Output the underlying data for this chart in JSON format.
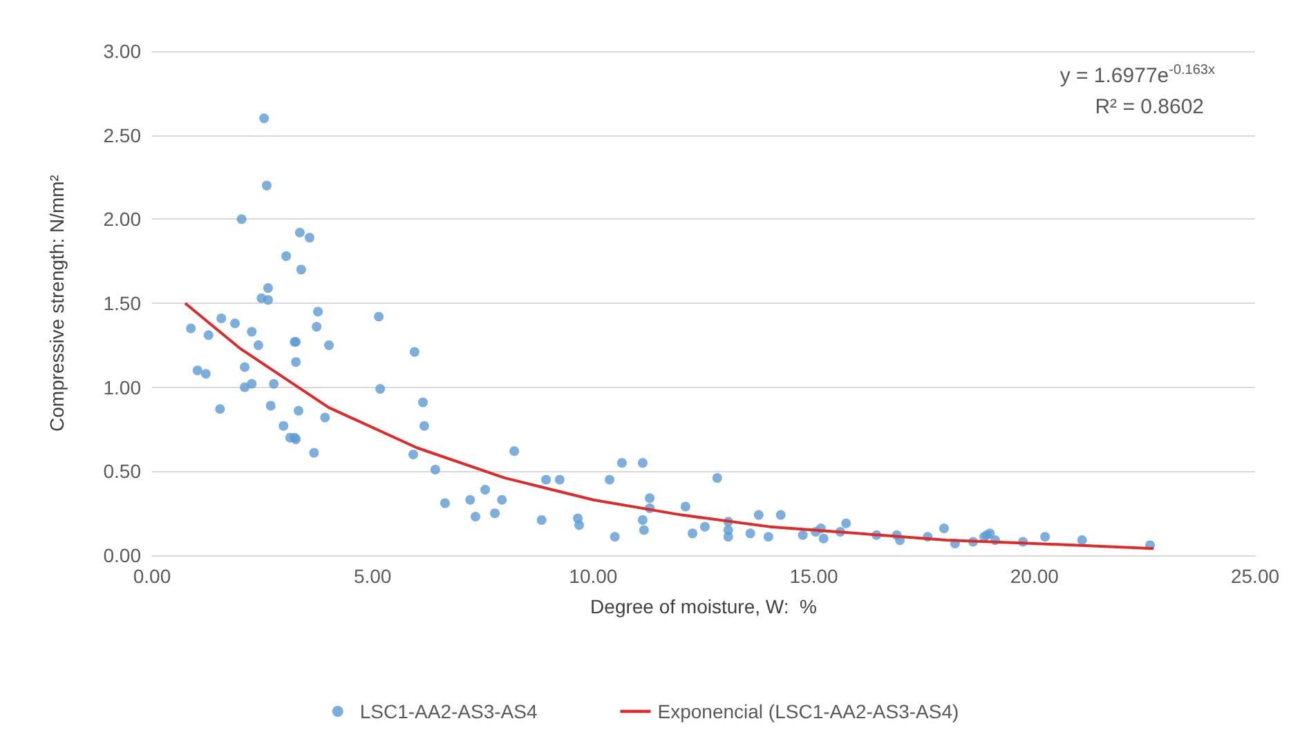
{
  "chart_data": {
    "type": "scatter",
    "xlabel": "Degree of moisture, W:  %",
    "ylabel": "Compressive strength: N/mm²",
    "annotations": [
      "y = 1.6977e$^{-0.163x}$",
      "R² = 0.8602"
    ],
    "xlim": [
      0,
      25
    ],
    "xticks": [
      {
        "value": 0,
        "label": "0.00"
      },
      {
        "value": 5,
        "label": "5.00"
      },
      {
        "value": 10,
        "label": "10.00"
      },
      {
        "value": 15,
        "label": "15.00"
      },
      {
        "value": 20,
        "label": "20.00"
      },
      {
        "value": 25,
        "label": "25.00"
      }
    ],
    "ylim": [
      0,
      3
    ],
    "yticks": [
      {
        "value": 0,
        "label": "0.00"
      },
      {
        "value": 0.5,
        "label": "0.50"
      },
      {
        "value": 1,
        "label": "1.00"
      },
      {
        "value": 1.5,
        "label": "1.50"
      },
      {
        "value": 2,
        "label": "2.00"
      },
      {
        "value": 2.5,
        "label": "2.50"
      },
      {
        "value": 3,
        "label": "3.00"
      }
    ],
    "grid": "y",
    "legend": "bottom",
    "series": [
      {
        "name": "LSC1-AA2-AS3-AS4",
        "marker": "circle",
        "color": "#5b9bd5",
        "x": [
          0.88,
          1.03,
          1.22,
          1.28,
          1.57,
          1.54,
          1.88,
          2.03,
          2.1,
          2.26,
          2.41,
          2.1,
          2.26,
          2.48,
          2.54,
          2.6,
          2.63,
          2.63,
          2.69,
          2.76,
          2.98,
          3.04,
          3.13,
          3.23,
          3.23,
          3.26,
          3.26,
          3.26,
          3.35,
          3.38,
          3.32,
          3.57,
          3.67,
          3.76,
          3.73,
          3.92,
          4.01,
          5.14,
          5.17,
          5.95,
          6.14,
          6.17,
          5.92,
          6.42,
          6.64,
          7.21,
          7.33,
          7.55,
          7.77,
          7.93,
          8.21,
          8.83,
          8.93,
          9.24,
          9.65,
          9.68,
          10.37,
          10.49,
          10.65,
          11.12,
          11.12,
          11.15,
          11.28,
          11.28,
          12.09,
          12.25,
          12.53,
          12.81,
          13.06,
          13.06,
          13.06,
          13.56,
          13.75,
          13.97,
          14.25,
          14.75,
          15.04,
          15.16,
          15.22,
          15.6,
          15.73,
          16.42,
          16.88,
          16.95,
          17.58,
          17.95,
          18.2,
          18.61,
          18.86,
          18.92,
          18.99,
          19.11,
          19.74,
          20.24,
          21.08,
          22.62
        ],
        "values": [
          1.35,
          1.1,
          1.08,
          1.31,
          1.41,
          0.87,
          1.38,
          2.0,
          1.12,
          1.33,
          1.25,
          1.0,
          1.02,
          1.53,
          2.6,
          2.2,
          1.59,
          1.52,
          0.89,
          1.02,
          0.77,
          1.78,
          0.7,
          1.27,
          0.7,
          1.15,
          1.27,
          0.69,
          1.92,
          1.7,
          0.86,
          1.89,
          0.61,
          1.45,
          1.36,
          0.82,
          1.25,
          1.42,
          0.99,
          1.21,
          0.91,
          0.77,
          0.6,
          0.51,
          0.31,
          0.33,
          0.23,
          0.39,
          0.25,
          0.33,
          0.62,
          0.21,
          0.45,
          0.45,
          0.22,
          0.18,
          0.45,
          0.11,
          0.55,
          0.55,
          0.21,
          0.15,
          0.34,
          0.28,
          0.29,
          0.13,
          0.17,
          0.46,
          0.2,
          0.15,
          0.11,
          0.13,
          0.24,
          0.11,
          0.24,
          0.12,
          0.14,
          0.16,
          0.1,
          0.14,
          0.19,
          0.12,
          0.12,
          0.09,
          0.11,
          0.16,
          0.07,
          0.08,
          0.11,
          0.12,
          0.13,
          0.09,
          0.08,
          0.11,
          0.09,
          0.06
        ]
      },
      {
        "name": "Exponencial (LSC1-AA2-AS3-AS4)",
        "type": "line",
        "marker": "none",
        "line_style": "solid",
        "color": "#e02a2a",
        "x": [
          0.75,
          2,
          4,
          6,
          8,
          10,
          12,
          14,
          16,
          18,
          20,
          22.7
        ],
        "values": [
          1.5,
          1.23,
          0.88,
          0.64,
          0.46,
          0.33,
          0.24,
          0.17,
          0.13,
          0.09,
          0.07,
          0.04
        ]
      }
    ]
  }
}
